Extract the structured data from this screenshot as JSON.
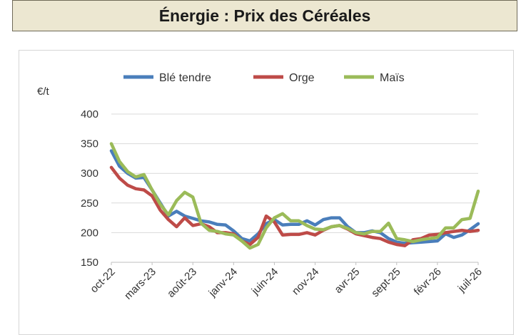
{
  "header": {
    "title": "Énergie : Prix des Céréales"
  },
  "chart_data": {
    "type": "line",
    "title": "",
    "ylabel": "€/t",
    "xlabel": "",
    "ylim": [
      150,
      400
    ],
    "yticks": [
      150,
      200,
      250,
      300,
      350,
      400
    ],
    "grid": "horizontal",
    "legend_position": "top",
    "x_tick_labels": [
      "oct-22",
      "mars-23",
      "août-23",
      "janv-24",
      "juin-24",
      "nov-24",
      "avr-25",
      "sept-25",
      "févr-26",
      "juil-26"
    ],
    "x_tick_index": [
      0,
      5,
      10,
      15,
      20,
      25,
      30,
      35,
      40,
      45
    ],
    "series": [
      {
        "name": "Blé tendre",
        "color": "#4a7ebb",
        "values": [
          338,
          312,
          300,
          292,
          293,
          272,
          250,
          228,
          236,
          228,
          224,
          220,
          218,
          214,
          213,
          203,
          190,
          186,
          198,
          215,
          222,
          213,
          214,
          214,
          220,
          213,
          222,
          225,
          225,
          210,
          200,
          200,
          203,
          200,
          190,
          184,
          182,
          183,
          184,
          185,
          186,
          198,
          192,
          196,
          205,
          215
        ]
      },
      {
        "name": "Orge",
        "color": "#be4b48",
        "values": [
          310,
          292,
          280,
          274,
          272,
          262,
          238,
          222,
          210,
          225,
          212,
          215,
          210,
          200,
          200,
          198,
          186,
          180,
          192,
          228,
          218,
          196,
          197,
          197,
          200,
          196,
          204,
          210,
          212,
          206,
          198,
          195,
          192,
          190,
          184,
          180,
          178,
          188,
          190,
          196,
          197,
          200,
          202,
          204,
          202,
          204
        ]
      },
      {
        "name": "Maïs",
        "color": "#9bbb59",
        "values": [
          350,
          320,
          303,
          294,
          298,
          272,
          248,
          230,
          254,
          268,
          260,
          216,
          204,
          202,
          198,
          196,
          186,
          174,
          180,
          208,
          225,
          232,
          220,
          220,
          212,
          206,
          205,
          210,
          212,
          207,
          200,
          198,
          202,
          202,
          216,
          190,
          188,
          185,
          188,
          190,
          192,
          208,
          208,
          222,
          224,
          270
        ]
      }
    ]
  }
}
